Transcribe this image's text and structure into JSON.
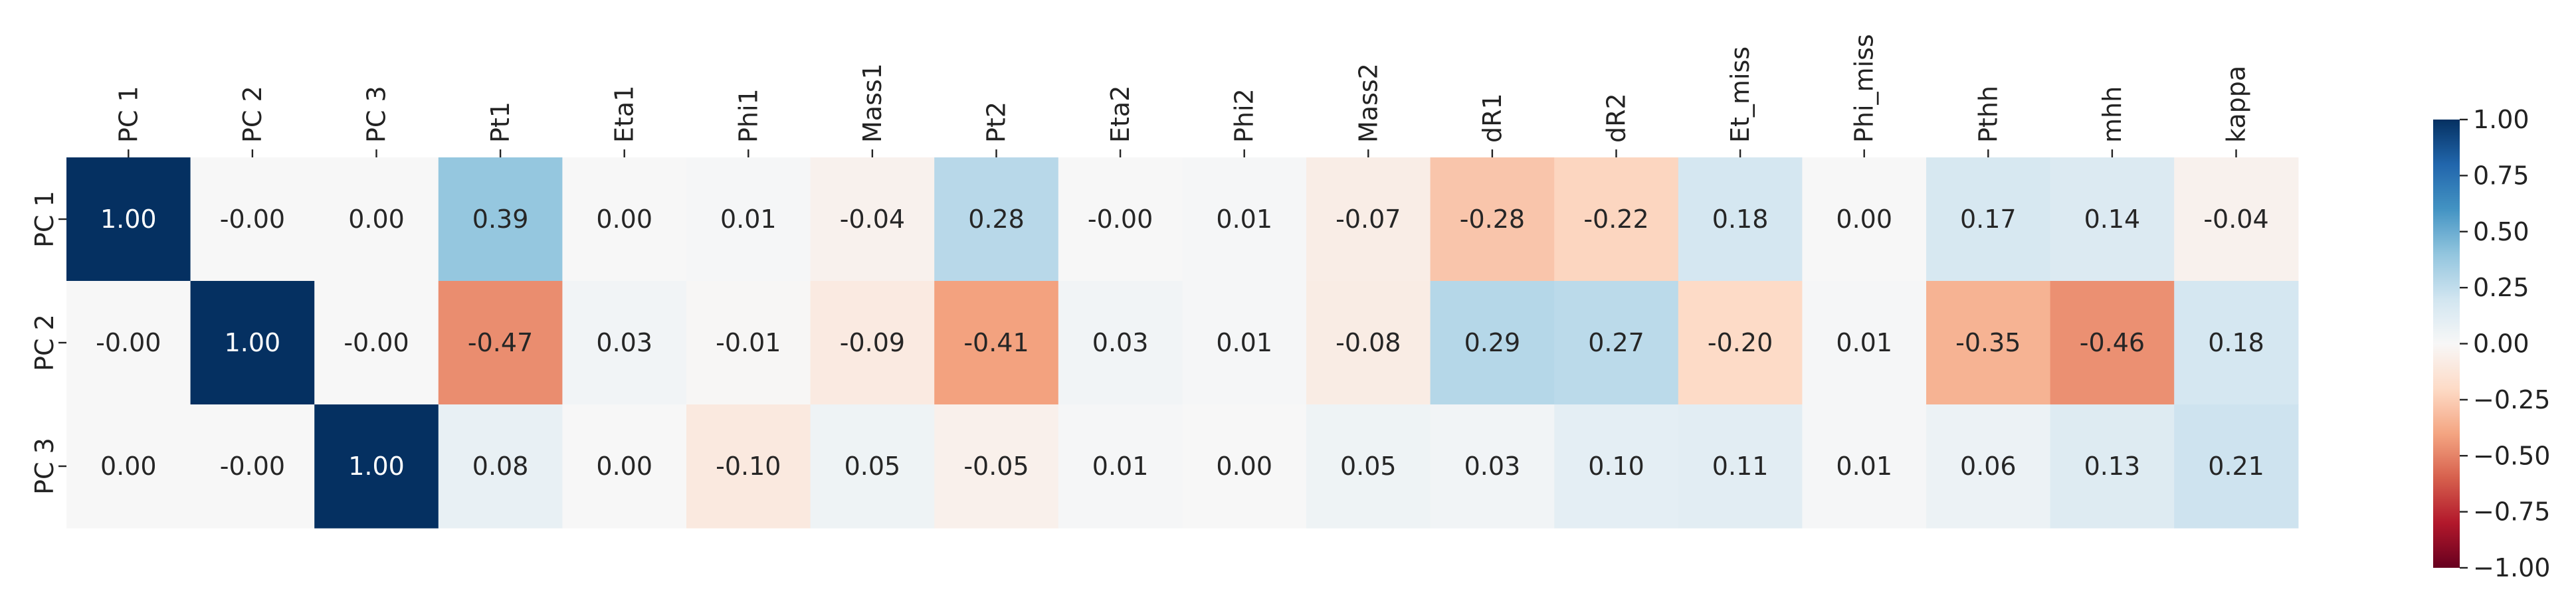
{
  "chart_data": {
    "type": "heatmap",
    "title": "",
    "xlabel": "",
    "ylabel": "",
    "columns": [
      "PC 1",
      "PC 2",
      "PC 3",
      "Pt1",
      "Eta1",
      "Phi1",
      "Mass1",
      "Pt2",
      "Eta2",
      "Phi2",
      "Mass2",
      "dR1",
      "dR2",
      "Et_miss",
      "Phi_miss",
      "Pthh",
      "mhh",
      "kappa"
    ],
    "rows": [
      "PC 1",
      "PC 2",
      "PC 3"
    ],
    "values": [
      [
        1.0,
        -0.0,
        0.0,
        0.39,
        0.0,
        0.01,
        -0.04,
        0.28,
        -0.0,
        0.01,
        -0.07,
        -0.28,
        -0.22,
        0.18,
        0.0,
        0.17,
        0.14,
        -0.04
      ],
      [
        -0.0,
        1.0,
        -0.0,
        -0.47,
        0.03,
        -0.01,
        -0.09,
        -0.41,
        0.03,
        0.01,
        -0.08,
        0.29,
        0.27,
        -0.2,
        0.01,
        -0.35,
        -0.46,
        0.18
      ],
      [
        0.0,
        -0.0,
        1.0,
        0.08,
        0.0,
        -0.1,
        0.05,
        -0.05,
        0.01,
        0.0,
        0.05,
        0.03,
        0.1,
        0.11,
        0.01,
        0.06,
        0.13,
        0.21
      ]
    ],
    "annotation_format": "2 decimals",
    "colormap": "RdBu",
    "color_stops": [
      "#67001f",
      "#b2182b",
      "#d6604d",
      "#f4a582",
      "#fddbc7",
      "#f7f7f7",
      "#d1e5f0",
      "#92c5de",
      "#4393c3",
      "#2166ac",
      "#053061"
    ],
    "vmin": -1.0,
    "vmax": 1.0,
    "colorbar": {
      "ticks": [
        1.0,
        0.75,
        0.5,
        0.25,
        0.0,
        -0.25,
        -0.5,
        -0.75,
        -1.0
      ],
      "tick_labels": [
        "1.00",
        "0.75",
        "0.50",
        "0.25",
        "0.00",
        "−0.25",
        "−0.50",
        "−0.75",
        "−1.00"
      ],
      "position": "right"
    },
    "x_tick_position": "top",
    "x_tick_rotation": "vertical",
    "y_tick_rotation": "vertical",
    "grid": false
  }
}
